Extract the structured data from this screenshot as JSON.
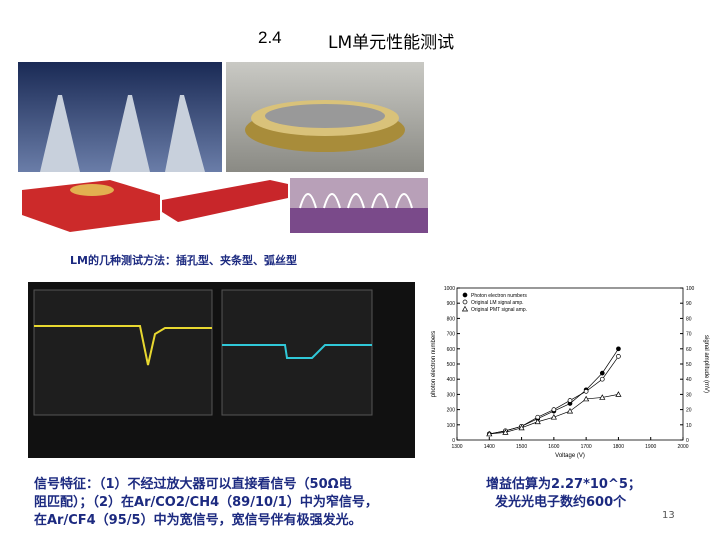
{
  "slide": {
    "section_number": "2.4",
    "title": "LM单元性能测试",
    "caption": "LM的几种测试方法：插孔型、夹条型、弧丝型",
    "signal_text": [
      "信号特征：（1）不经过放大器可以直接看信号（50Ω电",
      "阻匹配）；（2）在Ar/CO2/CH4（89/10/1）中为窄信号，",
      "在Ar/CF4（95/5）中为宽信号，宽信号伴有极强发光。"
    ],
    "gain_text": [
      "增益估算为2.27*10^5；",
      "发光光电子数约600个"
    ],
    "page_number": "13"
  },
  "chart_data": {
    "type": "scatter",
    "x_label": "Voltage (V)",
    "y_label": "photon electron numbers",
    "y2_label": "signal amplitude (mV)",
    "xlim": [
      1300,
      2000
    ],
    "xticks": [
      1300,
      1400,
      1500,
      1600,
      1700,
      1800,
      1900,
      2000
    ],
    "ylim": [
      0,
      1000
    ],
    "yticks": [
      0,
      100,
      200,
      300,
      400,
      500,
      600,
      700,
      800,
      900,
      1000
    ],
    "y2lim": [
      0,
      100
    ],
    "y2ticks": [
      0,
      10,
      20,
      30,
      40,
      50,
      60,
      70,
      80,
      90,
      100
    ],
    "legend": "upper left",
    "series": [
      {
        "name": "Photon electron numbers",
        "color": "#000000",
        "marker": "filled-circle",
        "x": [
          1400,
          1450,
          1500,
          1550,
          1600,
          1650,
          1700,
          1750,
          1800
        ],
        "values": [
          40,
          60,
          90,
          140,
          190,
          240,
          330,
          440,
          600
        ]
      },
      {
        "name": "Original LM signal amp.",
        "color": "#000000",
        "marker": "open-circle",
        "axis": "y2",
        "x": [
          1400,
          1450,
          1500,
          1550,
          1600,
          1650,
          1700,
          1750,
          1800
        ],
        "values": [
          4,
          6,
          9,
          15,
          20,
          26,
          32,
          40,
          55
        ]
      },
      {
        "name": "Original PMT signal amp.",
        "color": "#000000",
        "marker": "open-triangle",
        "axis": "y2",
        "x": [
          1400,
          1450,
          1500,
          1550,
          1600,
          1650,
          1700,
          1750,
          1800
        ],
        "values": [
          4,
          5,
          8,
          12,
          15,
          19,
          27,
          28,
          30
        ]
      }
    ]
  }
}
